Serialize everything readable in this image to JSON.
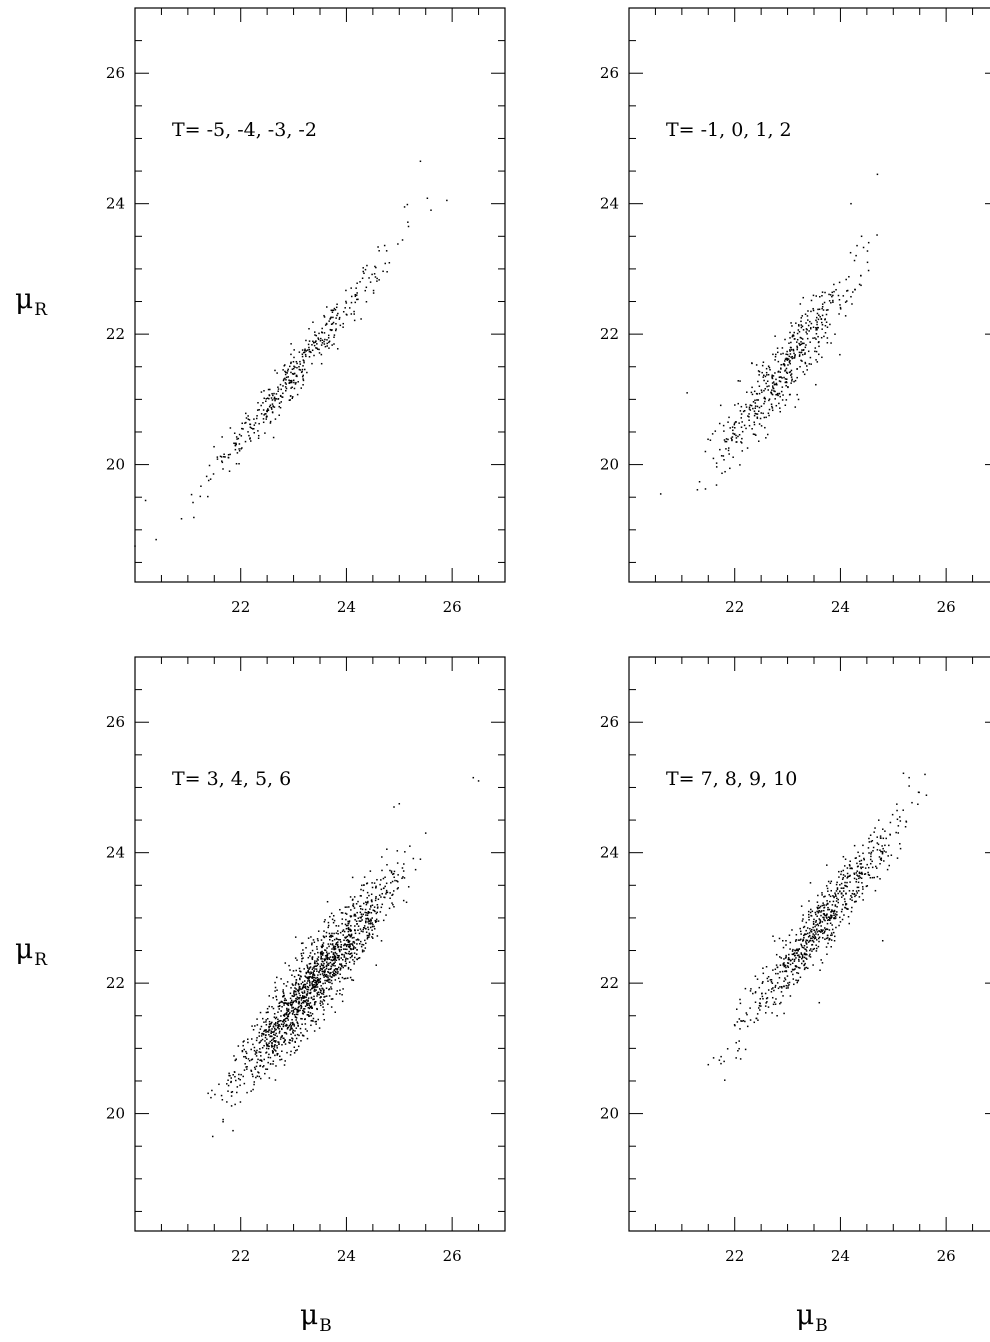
{
  "figure": {
    "y_axis_label": {
      "main": "μ",
      "sub": "R"
    },
    "x_axis_label": {
      "main": "μ",
      "sub": "B"
    }
  },
  "chart_data": [
    {
      "type": "scatter",
      "title": "T= -5, -4, -3, -2",
      "xlabel": "μB",
      "ylabel": "μR",
      "xlim": [
        20,
        27
      ],
      "ylim": [
        18.2,
        27
      ],
      "xticks": [
        22,
        24,
        26
      ],
      "yticks": [
        20,
        22,
        24,
        26
      ],
      "grid": false,
      "trend": {
        "slope": 1.0,
        "intercept": -1.6,
        "xrange": [
          20.6,
          25.6
        ],
        "n": 420,
        "spread": 0.18
      },
      "outliers": [
        [
          20.0,
          18.75
        ],
        [
          20.4,
          18.85
        ],
        [
          20.2,
          19.45
        ],
        [
          25.4,
          24.65
        ],
        [
          25.9,
          24.05
        ],
        [
          25.6,
          23.9
        ],
        [
          25.1,
          23.95
        ]
      ]
    },
    {
      "type": "scatter",
      "title": "T= -1, 0, 1, 2",
      "xlabel": "μB",
      "ylabel": "μR",
      "xlim": [
        20,
        27
      ],
      "ylim": [
        18.2,
        27
      ],
      "xticks": [
        22,
        24,
        26
      ],
      "yticks": [
        20,
        22,
        24,
        26
      ],
      "grid": false,
      "trend": {
        "slope": 1.05,
        "intercept": -2.6,
        "xrange": [
          21.0,
          24.9
        ],
        "n": 520,
        "spread": 0.28
      },
      "outliers": [
        [
          20.6,
          19.55
        ],
        [
          24.7,
          24.45
        ],
        [
          24.2,
          24.0
        ],
        [
          21.1,
          21.1
        ],
        [
          24.4,
          23.5
        ]
      ]
    },
    {
      "type": "scatter",
      "title": "T= 3, 4, 5, 6",
      "xlabel": "μB",
      "ylabel": "μR",
      "xlim": [
        20,
        27
      ],
      "ylim": [
        18.2,
        27
      ],
      "xticks": [
        22,
        24,
        26
      ],
      "yticks": [
        20,
        22,
        24,
        26
      ],
      "grid": false,
      "trend": {
        "slope": 0.98,
        "intercept": -0.9,
        "xrange": [
          21.2,
          25.6
        ],
        "n": 1500,
        "spread": 0.3
      },
      "outliers": [
        [
          26.4,
          25.15
        ],
        [
          26.5,
          25.1
        ],
        [
          25.0,
          24.75
        ],
        [
          24.9,
          24.7
        ],
        [
          25.5,
          24.3
        ],
        [
          25.2,
          24.1
        ],
        [
          25.4,
          23.9
        ]
      ]
    },
    {
      "type": "scatter",
      "title": "T= 7, 8, 9, 10",
      "xlabel": "μB",
      "ylabel": "μR",
      "xlim": [
        20,
        27
      ],
      "ylim": [
        18.2,
        27
      ],
      "xticks": [
        22,
        24,
        26
      ],
      "yticks": [
        20,
        22,
        24,
        26
      ],
      "grid": false,
      "trend": {
        "slope": 1.0,
        "intercept": -0.75,
        "xrange": [
          21.4,
          25.8
        ],
        "n": 750,
        "spread": 0.25
      },
      "outliers": [
        [
          21.5,
          20.75
        ],
        [
          21.8,
          20.8
        ],
        [
          25.6,
          25.2
        ],
        [
          25.3,
          25.15
        ],
        [
          24.8,
          22.65
        ],
        [
          23.6,
          21.7
        ]
      ]
    }
  ]
}
